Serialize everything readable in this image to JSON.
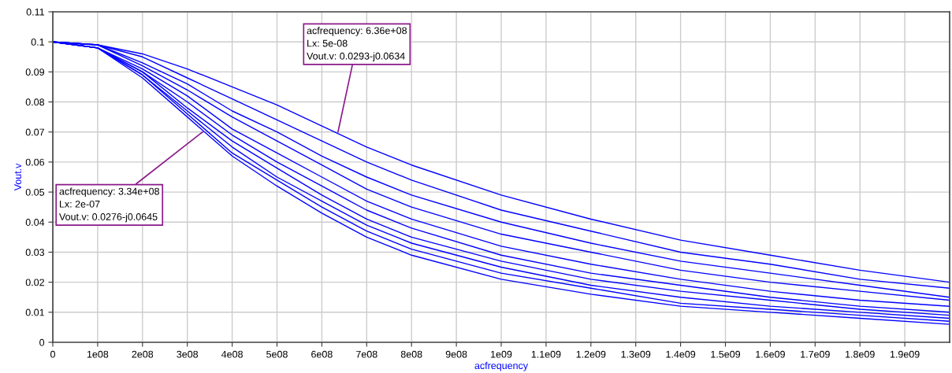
{
  "chart_data": {
    "type": "line",
    "xlabel": "acfrequency",
    "ylabel": "Vout.v",
    "x": [
      0,
      100000000.0,
      200000000.0,
      300000000.0,
      400000000.0,
      500000000.0,
      600000000.0,
      700000000.0,
      800000000.0,
      1000000000.0,
      1200000000.0,
      1400000000.0,
      1600000000.0,
      1800000000.0,
      2000000000.0
    ],
    "series": [
      {
        "color": "#0000ff",
        "values": [
          0.1,
          0.099,
          0.096,
          0.091,
          0.085,
          0.079,
          0.072,
          0.065,
          0.059,
          0.049,
          0.041,
          0.034,
          0.029,
          0.024,
          0.02
        ]
      },
      {
        "color": "#0000ff",
        "values": [
          0.1,
          0.099,
          0.095,
          0.088,
          0.081,
          0.074,
          0.067,
          0.06,
          0.054,
          0.044,
          0.037,
          0.03,
          0.026,
          0.021,
          0.018
        ]
      },
      {
        "color": "#0000ff",
        "values": [
          0.1,
          0.099,
          0.093,
          0.086,
          0.077,
          0.07,
          0.062,
          0.055,
          0.049,
          0.04,
          0.033,
          0.027,
          0.023,
          0.019,
          0.015
        ]
      },
      {
        "color": "#0000ff",
        "values": [
          0.1,
          0.099,
          0.092,
          0.084,
          0.075,
          0.067,
          0.059,
          0.051,
          0.045,
          0.036,
          0.03,
          0.024,
          0.02,
          0.017,
          0.014
        ]
      },
      {
        "color": "#0000ff",
        "values": [
          0.1,
          0.098,
          0.091,
          0.082,
          0.071,
          0.063,
          0.055,
          0.047,
          0.041,
          0.032,
          0.026,
          0.021,
          0.017,
          0.014,
          0.012
        ]
      },
      {
        "color": "#0000ff",
        "values": [
          0.1,
          0.098,
          0.09,
          0.08,
          0.069,
          0.06,
          0.052,
          0.044,
          0.038,
          0.029,
          0.023,
          0.019,
          0.015,
          0.012,
          0.01
        ]
      },
      {
        "color": "#0000ff",
        "values": [
          0.1,
          0.098,
          0.09,
          0.078,
          0.067,
          0.058,
          0.049,
          0.041,
          0.035,
          0.027,
          0.021,
          0.017,
          0.014,
          0.011,
          0.009
        ]
      },
      {
        "color": "#0000ff",
        "values": [
          0.1,
          0.098,
          0.089,
          0.077,
          0.065,
          0.055,
          0.047,
          0.039,
          0.033,
          0.025,
          0.019,
          0.015,
          0.012,
          0.01,
          0.008
        ]
      },
      {
        "color": "#0000ff",
        "values": [
          0.1,
          0.098,
          0.089,
          0.076,
          0.063,
          0.054,
          0.045,
          0.037,
          0.031,
          0.023,
          0.018,
          0.013,
          0.011,
          0.009,
          0.007
        ]
      },
      {
        "color": "#0000ff",
        "values": [
          0.1,
          0.098,
          0.088,
          0.075,
          0.062,
          0.052,
          0.043,
          0.035,
          0.029,
          0.021,
          0.016,
          0.012,
          0.01,
          0.008,
          0.006
        ]
      }
    ],
    "annotations": [
      {
        "text": "acfrequency: 6.36e+08\nLx: 5e-08\nVout.v: 0.0293-j0.0634",
        "x": 636000000.0,
        "y": 0.07
      },
      {
        "text": "acfrequency: 3.34e+08\nLx: 2e-07\nVout.v: 0.0276-j0.0645",
        "x": 334000000.0,
        "y": 0.07
      }
    ],
    "xlim": [
      0,
      2000000000.0
    ],
    "xticks": [
      0,
      {
        "value": 100000000.0,
        "label": "1e08"
      },
      {
        "value": 200000000.0,
        "label": "2e08"
      },
      {
        "value": 300000000.0,
        "label": "3e08"
      },
      {
        "value": 400000000.0,
        "label": "4e08"
      },
      {
        "value": 500000000.0,
        "label": "5e08"
      },
      {
        "value": 600000000.0,
        "label": "6e08"
      },
      {
        "value": 700000000.0,
        "label": "7e08"
      },
      {
        "value": 800000000.0,
        "label": "8e08"
      },
      {
        "value": 900000000.0,
        "label": "9e08"
      },
      {
        "value": 1000000000.0,
        "label": "1e09"
      },
      {
        "value": 1100000000.0,
        "label": "1.1e09"
      },
      {
        "value": 1200000000.0,
        "label": "1.2e09"
      },
      {
        "value": 1300000000.0,
        "label": "1.3e09"
      },
      {
        "value": 1400000000.0,
        "label": "1.4e09"
      },
      {
        "value": 1500000000.0,
        "label": "1.5e09"
      },
      {
        "value": 1600000000.0,
        "label": "1.6e09"
      },
      {
        "value": 1700000000.0,
        "label": "1.7e09"
      },
      {
        "value": 1800000000.0,
        "label": "1.8e09"
      },
      {
        "value": 1900000000.0,
        "label": "1.9e09"
      }
    ],
    "ylim": [
      0,
      0.11
    ],
    "yticks": [
      0,
      0.01,
      0.02,
      0.03,
      0.04,
      0.05,
      0.06,
      0.07,
      0.08,
      0.09,
      0.1,
      0.11
    ],
    "grid": true
  }
}
